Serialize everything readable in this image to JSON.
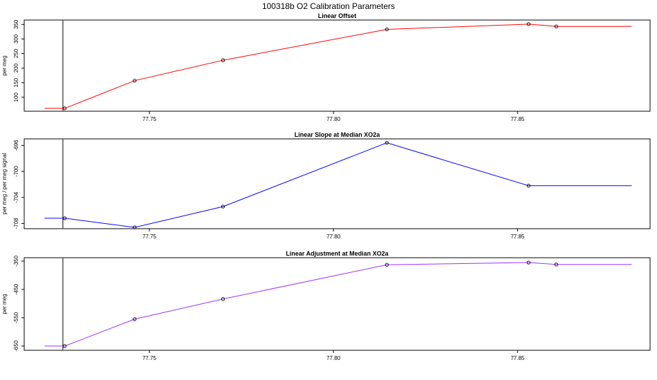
{
  "title": "100318b   O2 Calibration Parameters",
  "chart_data": [
    {
      "type": "line",
      "title": "Linear Offset",
      "xlabel": "",
      "ylabel": "per meg",
      "xlim": [
        77.716,
        77.886
      ],
      "ylim": [
        52,
        365
      ],
      "xticks": [
        77.75,
        77.8,
        77.85
      ],
      "xtick_labels": [
        "77.75",
        "77.80",
        "77.85"
      ],
      "yticks": [
        100,
        150,
        200,
        250,
        300,
        350
      ],
      "ytick_labels": [
        "100",
        "150",
        "200",
        "250",
        "300",
        "350"
      ],
      "vline_x": 77.7265,
      "color": "#ff0000",
      "line_x": [
        77.7215,
        77.727,
        77.746,
        77.77,
        77.8145,
        77.853,
        77.8605,
        77.881
      ],
      "line_y": [
        62,
        62,
        157,
        227,
        333,
        351,
        343,
        343
      ],
      "points_x": [
        77.727,
        77.746,
        77.77,
        77.8145,
        77.853,
        77.8605
      ],
      "points_y": [
        62,
        157,
        227,
        333,
        351,
        343
      ]
    },
    {
      "type": "line",
      "title": "Linear Slope at Median XO2a",
      "xlabel": "",
      "ylabel": "per meg / per meg signal",
      "xlim": [
        77.716,
        77.886
      ],
      "ylim": [
        -708.8,
        -695.0
      ],
      "xticks": [
        77.75,
        77.8,
        77.85
      ],
      "xtick_labels": [
        "77.75",
        "77.80",
        "77.85"
      ],
      "yticks": [
        -708,
        -704,
        -700,
        -696
      ],
      "ytick_labels": [
        "-708",
        "-704",
        "-700",
        "-696"
      ],
      "vline_x": 77.7265,
      "color": "#0000ff",
      "line_x": [
        77.7215,
        77.727,
        77.746,
        77.77,
        77.8145,
        77.853,
        77.881
      ],
      "line_y": [
        -707.2,
        -707.2,
        -708.6,
        -705.4,
        -695.6,
        -702.2,
        -702.2
      ],
      "points_x": [
        77.727,
        77.746,
        77.77,
        77.8145,
        77.853
      ],
      "points_y": [
        -707.2,
        -708.6,
        -705.4,
        -695.6,
        -702.2
      ]
    },
    {
      "type": "line",
      "title": "Linear Adjustment at Median XO2a",
      "xlabel": "",
      "ylabel": "per meg",
      "xlim": [
        77.716,
        77.886
      ],
      "ylim": [
        -665,
        -338
      ],
      "xticks": [
        77.75,
        77.8,
        77.85
      ],
      "xtick_labels": [
        "77.75",
        "77.80",
        "77.85"
      ],
      "yticks": [
        -650,
        -550,
        -450,
        -350
      ],
      "ytick_labels": [
        "-650",
        "-550",
        "-450",
        "-350"
      ],
      "vline_x": 77.7265,
      "color": "#9b30ff",
      "line_x": [
        77.7215,
        77.727,
        77.746,
        77.77,
        77.8145,
        77.853,
        77.8605,
        77.881
      ],
      "line_y": [
        -650,
        -650,
        -555,
        -484,
        -363,
        -355,
        -362,
        -362
      ],
      "points_x": [
        77.727,
        77.746,
        77.77,
        77.8145,
        77.853,
        77.8605
      ],
      "points_y": [
        -650,
        -555,
        -484,
        -363,
        -355,
        -362
      ]
    }
  ]
}
